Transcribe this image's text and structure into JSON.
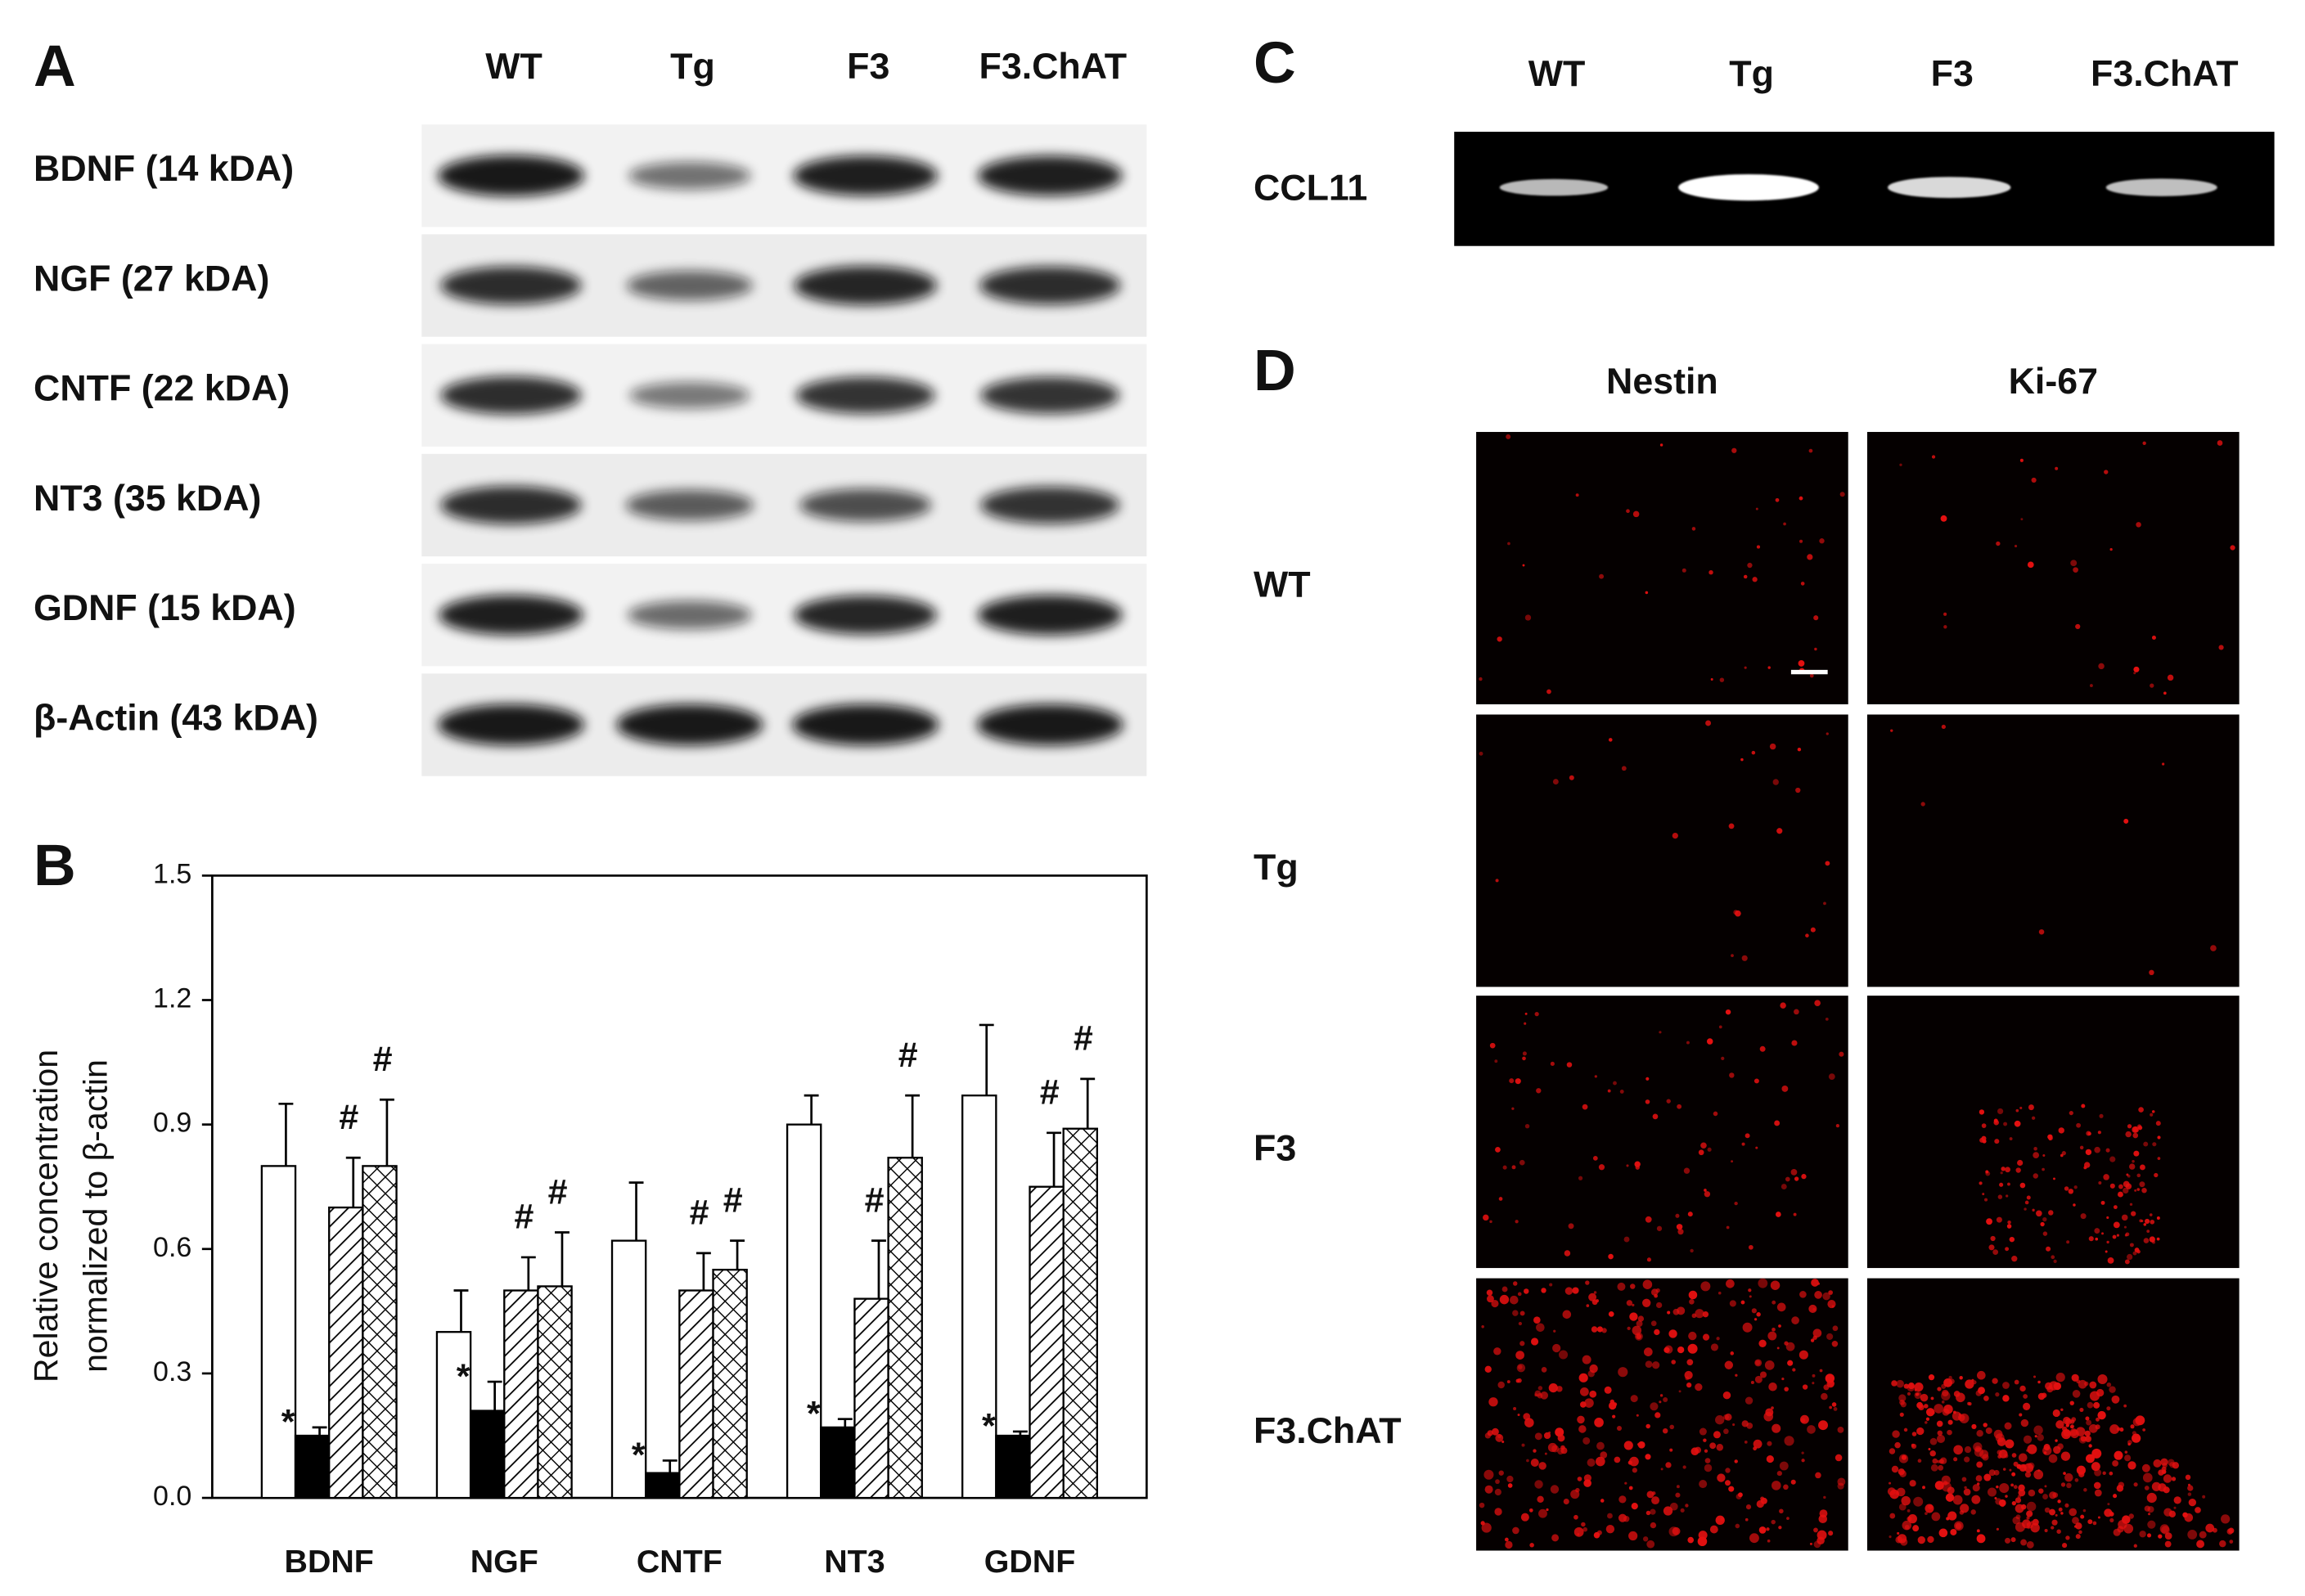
{
  "panel_labels": [
    "A",
    "B",
    "C",
    "D"
  ],
  "western_blot": {
    "lanes": [
      "WT",
      "Tg",
      "F3",
      "F3.ChAT"
    ],
    "rows": [
      "BDNF (14 kDA)",
      "NGF (27 kDA)",
      "CNTF (22 kDA)",
      "NT3 (35 kDA)",
      "GDNF (15 kDA)",
      "β-Actin (43 kDA)"
    ]
  },
  "pcr": {
    "lanes": [
      "WT",
      "Tg",
      "F3",
      "F3.ChAT"
    ],
    "row": "CCL11"
  },
  "immunostaining": {
    "columns": [
      "Nestin",
      "Ki-67"
    ],
    "rows": [
      "WT",
      "Tg",
      "F3",
      "F3.ChAT"
    ]
  },
  "chart_data": {
    "type": "bar",
    "y_label": [
      "Relative concentration",
      "normalized to β-actin"
    ],
    "categories": [
      "BDNF",
      "NGF",
      "CNTF",
      "NT3",
      "GDNF"
    ],
    "series": [
      {
        "pattern": "open",
        "values": [
          0.8,
          0.4,
          0.62,
          0.9,
          0.97
        ],
        "errors": [
          0.15,
          0.1,
          0.14,
          0.07,
          0.17
        ]
      },
      {
        "pattern": "solid",
        "values": [
          0.15,
          0.21,
          0.06,
          0.17,
          0.15
        ],
        "errors": [
          0.02,
          0.07,
          0.03,
          0.02,
          0.01
        ],
        "marks": [
          "*",
          "*",
          "*",
          "*",
          "*"
        ]
      },
      {
        "pattern": "hatch",
        "values": [
          0.7,
          0.5,
          0.5,
          0.48,
          0.75
        ],
        "errors": [
          0.12,
          0.08,
          0.09,
          0.14,
          0.13
        ],
        "marks": [
          "#",
          "#",
          "#",
          "#",
          "#"
        ]
      },
      {
        "pattern": "crosshatch",
        "values": [
          0.8,
          0.51,
          0.55,
          0.82,
          0.89
        ],
        "errors": [
          0.16,
          0.13,
          0.07,
          0.15,
          0.12
        ],
        "marks": [
          "#",
          "#",
          "#",
          "#",
          "#"
        ]
      }
    ],
    "ylim": [
      0,
      1.5
    ],
    "yticks": [
      {
        "value": 0,
        "label": "0.0"
      },
      {
        "value": 0.3,
        "label": "0.3"
      },
      {
        "value": 0.6,
        "label": "0.6"
      },
      {
        "value": 0.9,
        "label": "0.9"
      },
      {
        "value": 1.2,
        "label": "1.2"
      },
      {
        "value": 1.5,
        "label": "1.5"
      }
    ],
    "grid": false
  }
}
